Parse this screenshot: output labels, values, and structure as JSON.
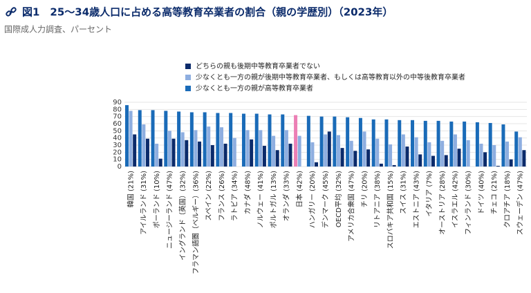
{
  "chart_data": {
    "type": "bar",
    "title": "図1　25〜34歳人口に占める高等教育卒業者の割合（親の学歴別）（2023年）",
    "subtitle": "国際成人力調査、パーセント",
    "categories": [
      "韓国 (21%)",
      "アイルランド (31%)",
      "ポーランド (10%)",
      "ニュージーランド (47%)",
      "イングランド（英国）(32%)",
      "フラマン語圏（ベルギー）(36%)",
      "スペイン (22%)",
      "フランス (26%)",
      "ラトビア (34%)",
      "カナダ (48%)",
      "ノルウェー (41%)",
      "ポルトガル (13%)",
      "オランダ (33%)",
      "日本 (42%)",
      "ハンガリー (20%)",
      "デンマーク (45%)",
      "OECD平均 (32%)",
      "アメリカ合衆国 (47%)",
      "チリ (20%)",
      "リトアニア (38%)",
      "スロバキア共和国 (15%)",
      "スイス (31%)",
      "エストニア (43%)",
      "イタリア (7%)",
      "オーストリア (28%)",
      "イスラエル (42%)",
      "フィンランド (30%)",
      "ドイツ (40%)",
      "チェコ (21%)",
      "クロアチア (18%)",
      "スウェーデン (47%)"
    ],
    "series": [
      {
        "name": "少なくとも一方の親が高等教育卒業者",
        "color": "#1a6bb8",
        "highlight_color": "#ec7fb5",
        "highlight_categories": [
          "日本 (42%)"
        ],
        "values": [
          86,
          79,
          79,
          78,
          77,
          76,
          76,
          75,
          75,
          74,
          74,
          73,
          73,
          72,
          71,
          70,
          70,
          69,
          68,
          66,
          66,
          65,
          65,
          64,
          64,
          63,
          63,
          62,
          61,
          59,
          49
        ]
      },
      {
        "name": "少なくとも一方の親が後期中等教育卒業者、もしくは高等教育以外の中等後教育卒業者",
        "color": "#8eaee0",
        "values": [
          78,
          59,
          32,
          50,
          48,
          51,
          56,
          55,
          40,
          51,
          51,
          43,
          51,
          43,
          34,
          45,
          44,
          36,
          49,
          39,
          31,
          45,
          41,
          34,
          36,
          45,
          37,
          32,
          30,
          35,
          41
        ]
      },
      {
        "name": "どちらの親も後期中等教育卒業者でない",
        "color": "#0b2b6b",
        "values": [
          45,
          39,
          11,
          39,
          37,
          35,
          30,
          32,
          null,
          38,
          29,
          23,
          32,
          null,
          6,
          49,
          26,
          22,
          24,
          4,
          2,
          28,
          17,
          15,
          16,
          25,
          null,
          20,
          1,
          10,
          23
        ]
      }
    ],
    "ylim": [
      0,
      90
    ],
    "yticks": [
      0,
      10,
      20,
      30,
      40,
      50,
      60,
      70,
      80,
      90
    ],
    "grid": true
  }
}
